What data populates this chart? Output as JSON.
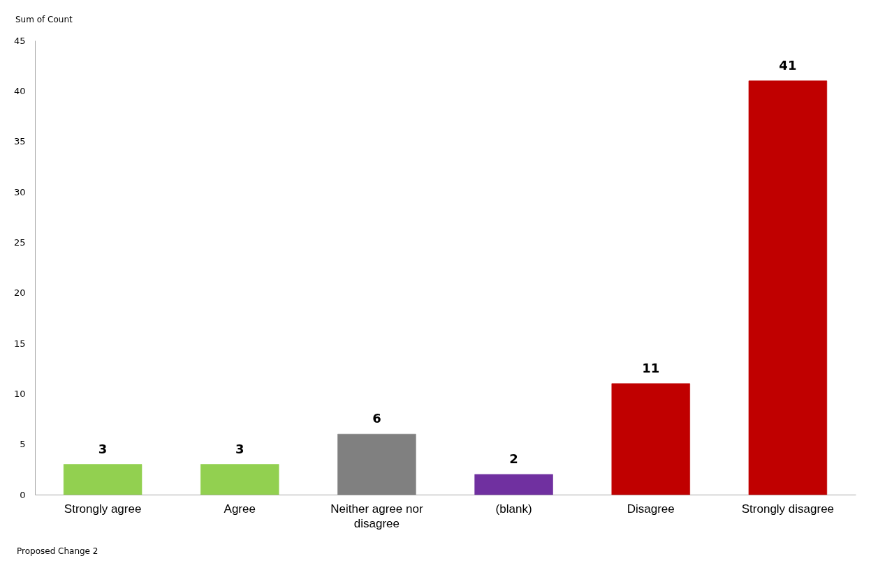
{
  "chart_data": {
    "type": "bar",
    "categories": [
      "Strongly agree",
      "Agree",
      "Neither agree nor disagree",
      "(blank)",
      "Disagree",
      "Strongly disagree"
    ],
    "values": [
      3,
      3,
      6,
      2,
      11,
      41
    ],
    "colors": [
      "#92d050",
      "#92d050",
      "#808080",
      "#7030a0",
      "#c00000",
      "#c00000"
    ],
    "ylim": [
      0,
      45
    ],
    "yticks": [
      0,
      5,
      10,
      15,
      20,
      25,
      30,
      35,
      40,
      45
    ],
    "data_labels": true,
    "grid": false,
    "legend": false,
    "annotations": [
      "Sum of Count",
      "Proposed Change 2"
    ]
  }
}
